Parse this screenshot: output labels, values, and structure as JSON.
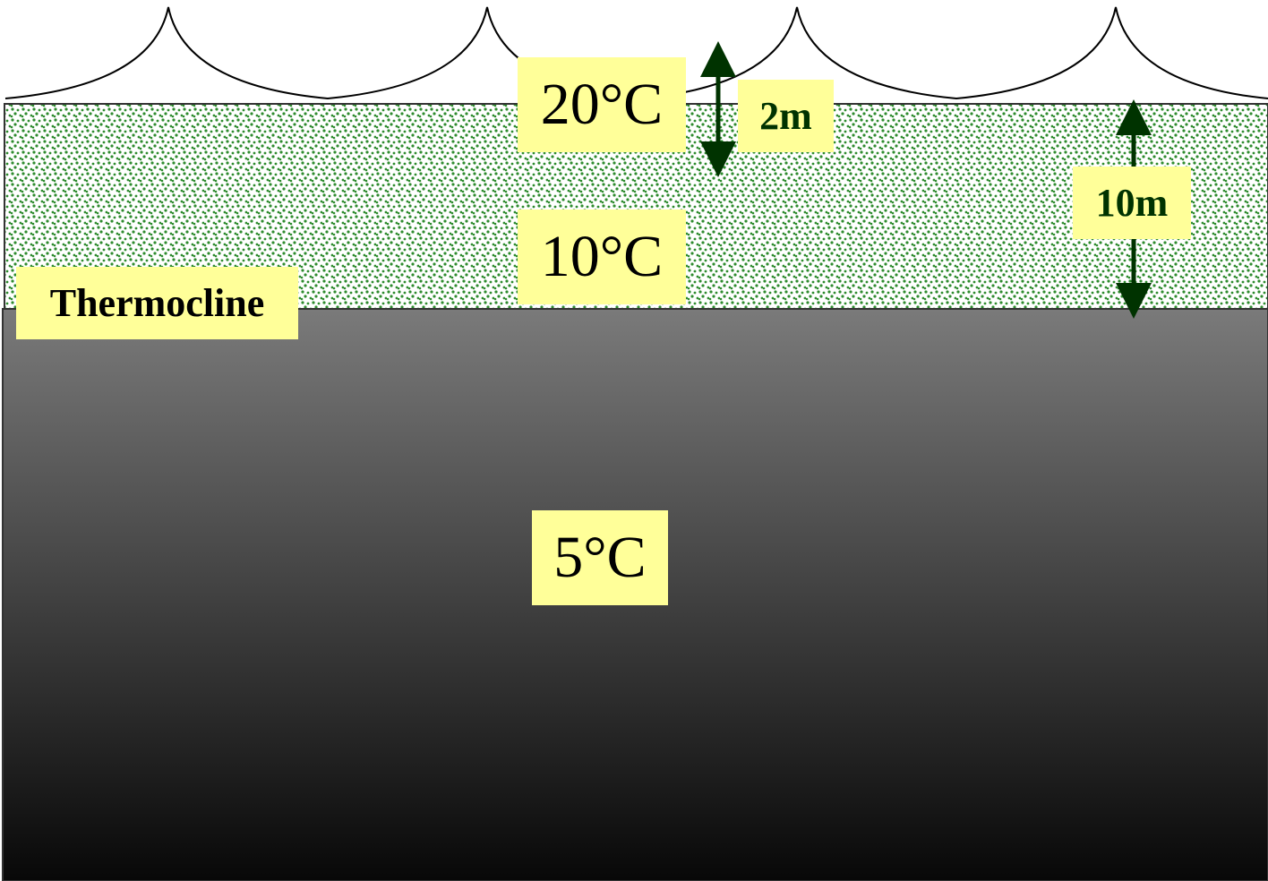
{
  "labels": {
    "surface_temp": "20°C",
    "mid_temp": "10°C",
    "deep_temp": "5°C",
    "thermocline": "Thermocline",
    "depth_shallow": "2m",
    "depth_layer": "10m"
  },
  "colors": {
    "label_background": "#ffff99",
    "arrow": "#003300",
    "depth_text": "#003300",
    "epilimnion_dots": "#2e8b2e",
    "hypolimnion_top": "#7a7a7a",
    "hypolimnion_bottom": "#080808"
  },
  "icons": {
    "waves": "wave-outline",
    "arrows": "double-headed-arrow"
  }
}
